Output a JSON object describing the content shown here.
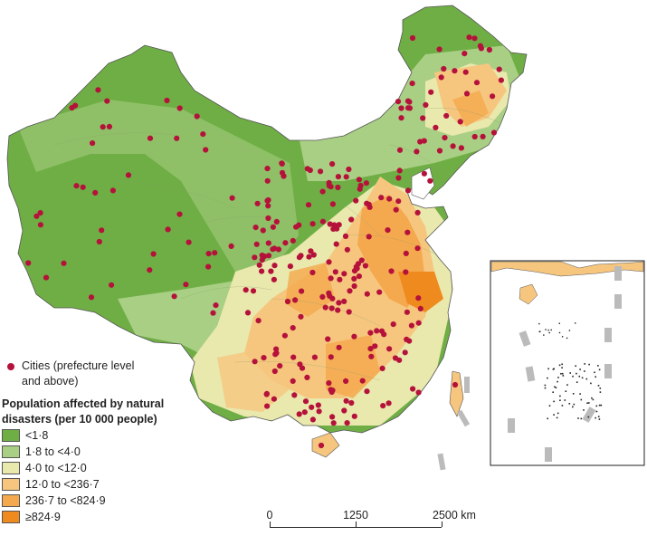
{
  "legend": {
    "cities_label_line1": "Cities (prefecture level",
    "cities_label_line2": "and above)",
    "title_line1": "Population affected by natural",
    "title_line2": "disasters (per 10 000 people)",
    "items": [
      {
        "label": "<1·8",
        "color": "#6fae45"
      },
      {
        "label": "1·8 to <4·0",
        "color": "#a9cf84"
      },
      {
        "label": "4·0 to <12·0",
        "color": "#e9e8ad"
      },
      {
        "label": "12·0 to <236·7",
        "color": "#f6c67f"
      },
      {
        "label": "236·7 to <824·9",
        "color": "#f4a94e"
      },
      {
        "label": "≥824·9",
        "color": "#ef8a1f"
      }
    ]
  },
  "scale": {
    "labels": [
      "0",
      "1250",
      "2500 km"
    ]
  },
  "colors": {
    "city": "#b5123b",
    "sea": "#ffffff",
    "border": "#555555",
    "inset_frame": "#222222",
    "dash_marker": "#bbbbbb"
  }
}
